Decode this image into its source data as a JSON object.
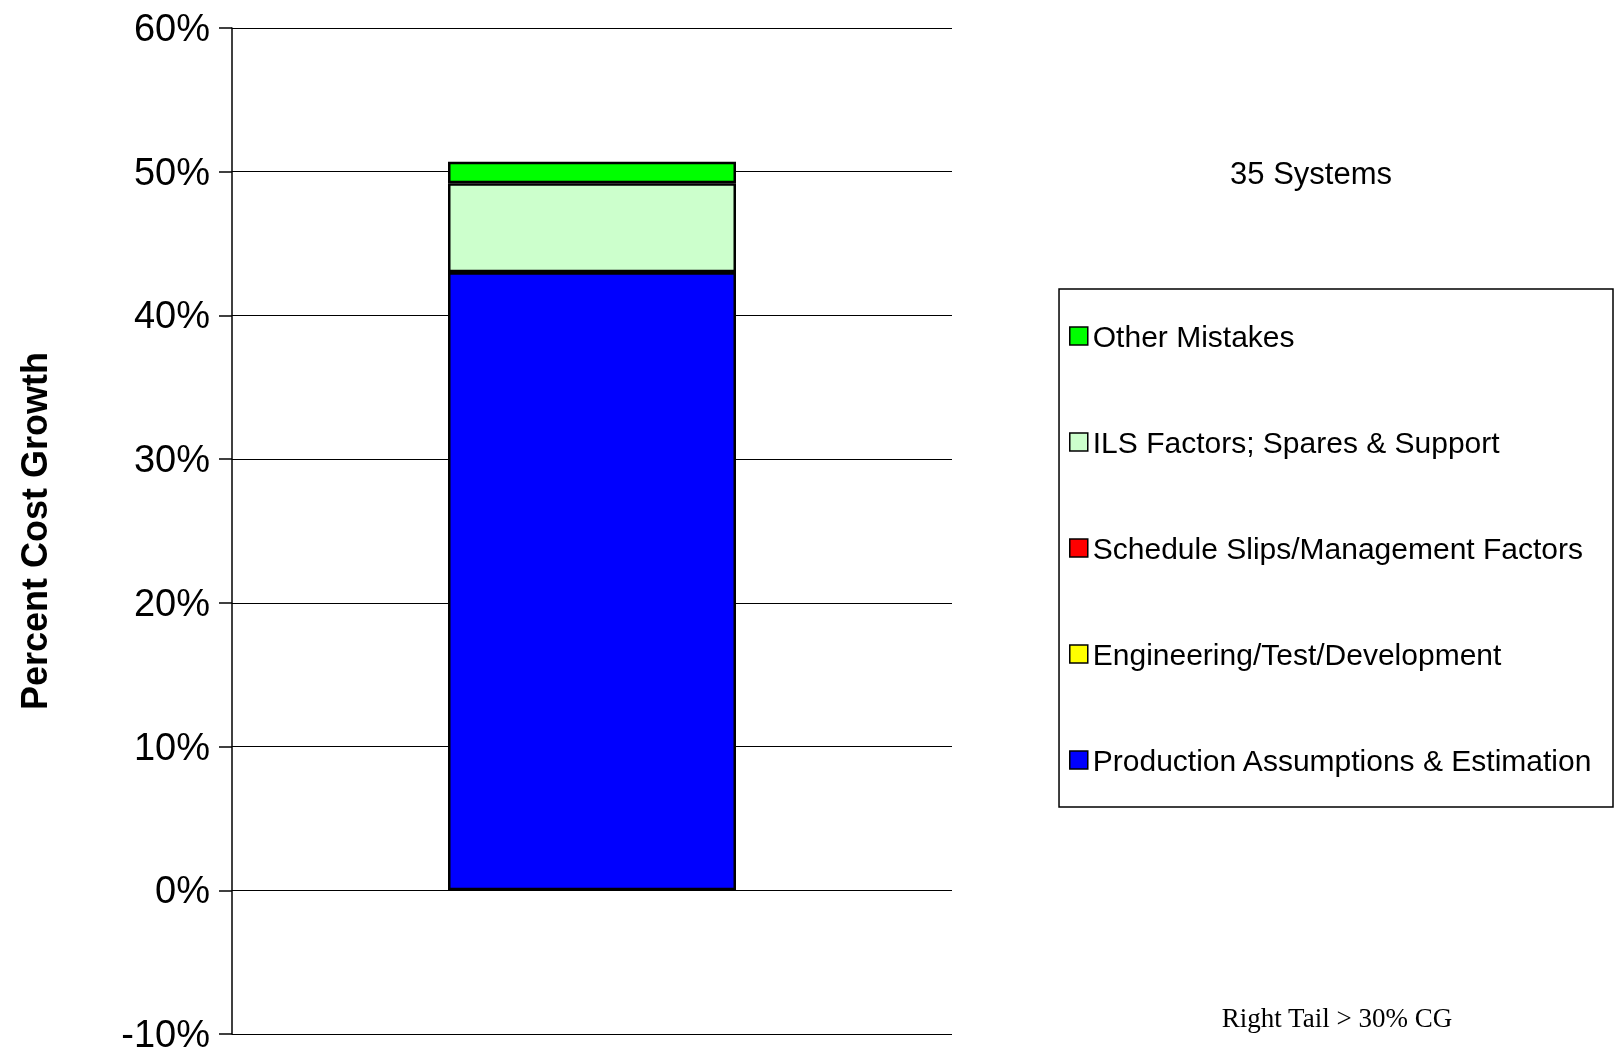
{
  "chart_data": {
    "type": "bar",
    "stacked": true,
    "ylabel": "Percent Cost Growth",
    "categories": [
      null
    ],
    "series": [
      {
        "name": "Production Assumptions & Estimation",
        "color": "#0000ff",
        "values": [
          43.0
        ]
      },
      {
        "name": "Engineering/Test/Development",
        "color": "#ffff00",
        "values": [
          0
        ]
      },
      {
        "name": "Schedule Slips/Management Factors",
        "color": "#ff0000",
        "values": [
          0
        ]
      },
      {
        "name": "ILS Factors; Spares & Support",
        "color": "#ccffcc",
        "values": [
          6.2
        ]
      },
      {
        "name": "Other Mistakes",
        "color": "#00ff00",
        "values": [
          1.5
        ]
      }
    ],
    "ylim": [
      -10,
      60
    ],
    "yticks": [
      {
        "value": -10,
        "label": "-10%"
      },
      {
        "value": 0,
        "label": "0%"
      },
      {
        "value": 10,
        "label": "10%"
      },
      {
        "value": 20,
        "label": "20%"
      },
      {
        "value": 30,
        "label": "30%"
      },
      {
        "value": 40,
        "label": "40%"
      },
      {
        "value": 50,
        "label": "50%"
      },
      {
        "value": 60,
        "label": "60%"
      }
    ],
    "grid": "y",
    "legend": "right",
    "annotations": [
      "35 Systems",
      "Right Tail > 30% CG"
    ]
  }
}
